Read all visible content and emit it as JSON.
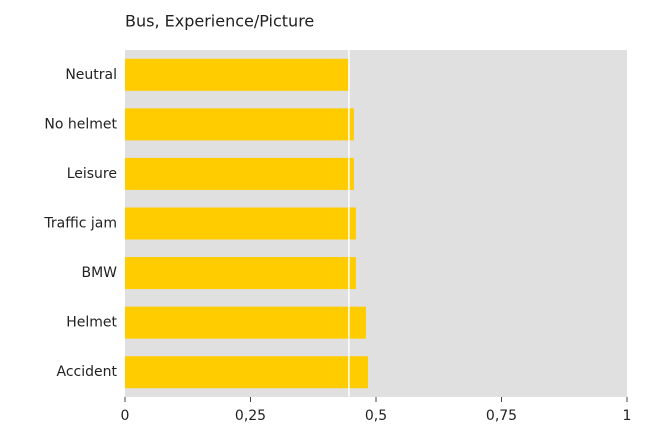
{
  "chart_data": {
    "type": "hbar",
    "title": "Bus, Experience/Picture",
    "categories": [
      "Neutral",
      "No helmet",
      "Leisure",
      "Traffic jam",
      "BMW",
      "Helmet",
      "Accident"
    ],
    "values": [
      0.446,
      0.456,
      0.456,
      0.46,
      0.46,
      0.48,
      0.484
    ],
    "color": "#ffcc00",
    "xlim": [
      0,
      1
    ],
    "xticks": [
      0,
      {
        "value": 0.25,
        "label": "0,25"
      },
      {
        "value": 0.5,
        "label": "0,5"
      },
      {
        "value": 0.75,
        "label": "0,75"
      },
      1
    ],
    "reference_line": 0.446,
    "plot_background": "#e0e0e0"
  }
}
